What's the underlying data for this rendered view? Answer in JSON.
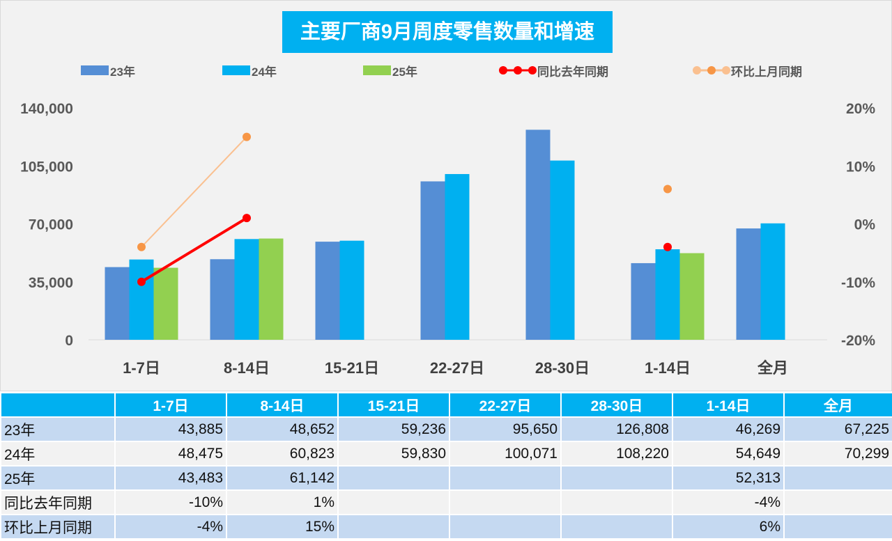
{
  "chart_data": {
    "type": "bar",
    "title": "主要厂商9月周度零售数量和增速",
    "categories": [
      "1-7日",
      "8-14日",
      "15-21日",
      "22-27日",
      "28-30日",
      "1-14日",
      "全月"
    ],
    "series": [
      {
        "name": "23年",
        "type": "bar",
        "color": "#558ed5",
        "values": [
          43885,
          48652,
          59236,
          95650,
          126808,
          46269,
          67225
        ]
      },
      {
        "name": "24年",
        "type": "bar",
        "color": "#00b0f0",
        "values": [
          48475,
          60823,
          59830,
          100071,
          108220,
          54649,
          70299
        ]
      },
      {
        "name": "25年",
        "type": "bar",
        "color": "#92d050",
        "values": [
          43483,
          61142,
          null,
          null,
          null,
          52313,
          null
        ]
      },
      {
        "name": "同比去年同期",
        "type": "line",
        "axis": "right",
        "color": "#ff0000",
        "values": [
          -10,
          1,
          null,
          null,
          null,
          -4,
          null
        ]
      },
      {
        "name": "环比上月同期",
        "type": "line",
        "axis": "right",
        "color": "#fac090",
        "marker_color": "#f79646",
        "values": [
          -4,
          15,
          null,
          null,
          null,
          6,
          null
        ]
      }
    ],
    "ylim": [
      0,
      140000
    ],
    "yticks": [
      "140,000",
      "105,000",
      "70,000",
      "35,000",
      "0"
    ],
    "y2lim": [
      -20,
      20
    ],
    "y2ticks": [
      "20%",
      "10%",
      "0%",
      "-10%",
      "-20%"
    ],
    "legend": "top",
    "grid": false
  },
  "table": {
    "header": [
      "",
      "1-7日",
      "8-14日",
      "15-21日",
      "22-27日",
      "28-30日",
      "1-14日",
      "全月"
    ],
    "rows": [
      [
        "23年",
        "43,885",
        "48,652",
        "59,236",
        "95,650",
        "126,808",
        "46,269",
        "67,225"
      ],
      [
        "24年",
        "48,475",
        "60,823",
        "59,830",
        "100,071",
        "108,220",
        "54,649",
        "70,299"
      ],
      [
        "25年",
        "43,483",
        "61,142",
        "",
        "",
        "",
        "52,313",
        ""
      ],
      [
        "同比去年同期",
        "-10%",
        "1%",
        "",
        "",
        "",
        "-4%",
        ""
      ],
      [
        "环比上月同期",
        "-4%",
        "15%",
        "",
        "",
        "",
        "6%",
        ""
      ]
    ]
  }
}
